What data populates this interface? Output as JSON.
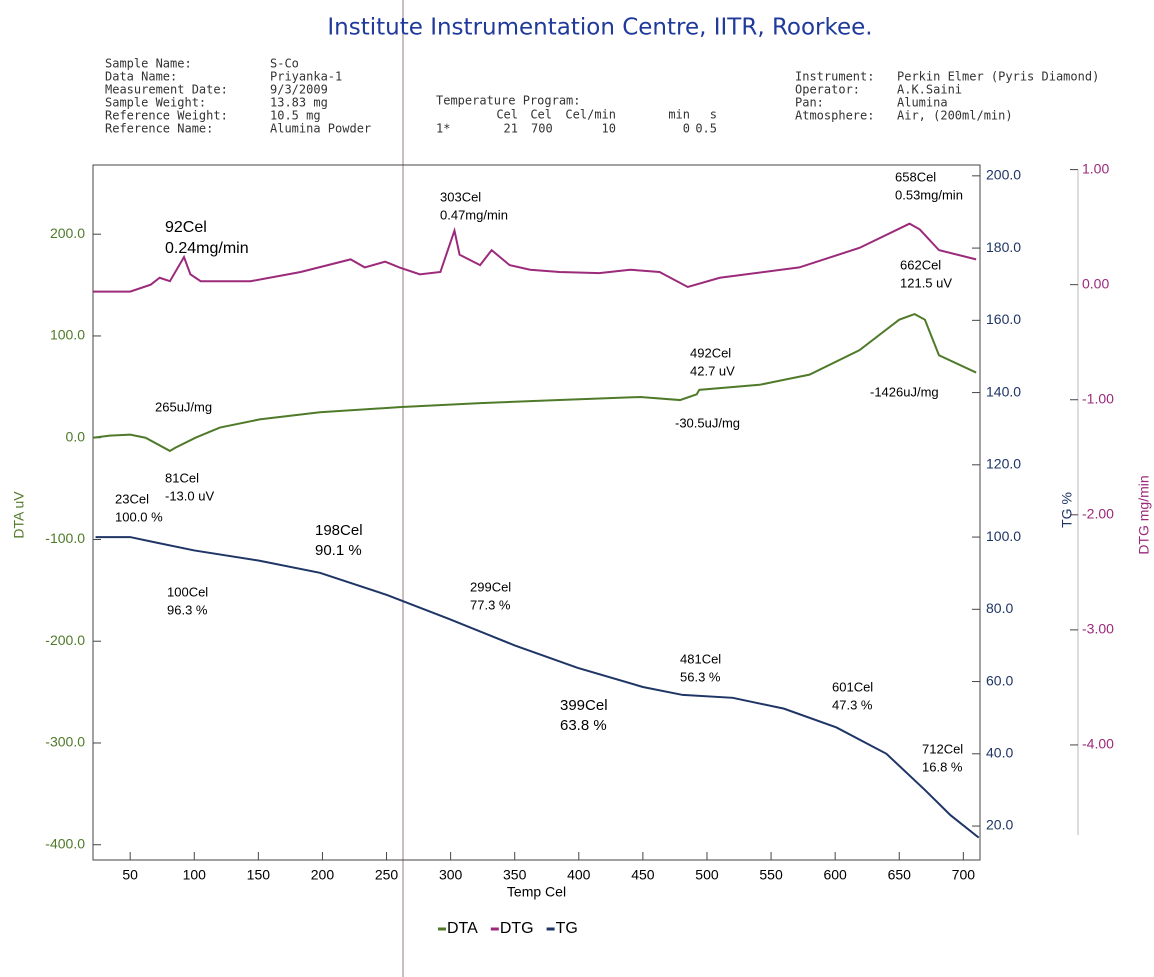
{
  "header": {
    "title": "Institute Instrumentation Centre, IITR, Roorkee.",
    "sample": [
      [
        "Sample Name:",
        "S-Co"
      ],
      [
        "Data Name:",
        "Priyanka-1"
      ],
      [
        "Measurement Date:",
        "9/3/2009"
      ],
      [
        "Sample Weight:",
        "13.83 mg"
      ],
      [
        "Reference Weight:",
        "10.5 mg"
      ],
      [
        "Reference Name:",
        "Alumina Powder"
      ]
    ],
    "program": {
      "title": "Temperature Program:",
      "columns": [
        "Cel",
        "Cel",
        "Cel/min",
        "min",
        "s"
      ],
      "row": [
        "1*",
        "21",
        "700",
        "10",
        "0",
        "0.5"
      ]
    },
    "instrument": [
      [
        "Instrument:",
        "Perkin Elmer (Pyris Diamond)"
      ],
      [
        "Operator:",
        "A.K.Saini"
      ],
      [
        "Pan:",
        "Alumina"
      ],
      [
        "Atmosphere:",
        "Air, (200ml/min)"
      ]
    ]
  },
  "chart_data": {
    "type": "line",
    "xlabel": "Temp Cel",
    "ylabel": "DTA uV",
    "y2label": "TG %",
    "y3label": "DTG mg/min",
    "xlim": [
      21,
      713
    ],
    "xticks": [
      50,
      100,
      150,
      200,
      250,
      300,
      350,
      400,
      450,
      500,
      550,
      600,
      650,
      700
    ],
    "ylim": [
      -415,
      268
    ],
    "yticks": [
      {
        "value": 200,
        "label": "200.0"
      },
      {
        "value": 100,
        "label": "100.0"
      },
      {
        "value": 0,
        "label": "0.0"
      },
      {
        "value": -100,
        "label": "-100.0"
      },
      {
        "value": -200,
        "label": "-200.0"
      },
      {
        "value": -300,
        "label": "-300.0"
      },
      {
        "value": -400,
        "label": "-400.0"
      }
    ],
    "y2lim": [
      10.6,
      203
    ],
    "y2ticks": [
      {
        "value": 200,
        "label": "200.0"
      },
      {
        "value": 180,
        "label": "180.0"
      },
      {
        "value": 160,
        "label": "160.0"
      },
      {
        "value": 140,
        "label": "140.0"
      },
      {
        "value": 120,
        "label": "120.0"
      },
      {
        "value": 100,
        "label": "100.0"
      },
      {
        "value": 80,
        "label": "80.0"
      },
      {
        "value": 60,
        "label": "60.0"
      },
      {
        "value": 40,
        "label": "40.0"
      },
      {
        "value": 20,
        "label": "20.0"
      }
    ],
    "y3lim": [
      -5.0,
      1.04
    ],
    "y3ticks": [
      {
        "value": 1,
        "label": "1.00"
      },
      {
        "value": 0,
        "label": "0.00"
      },
      {
        "value": -1,
        "label": "-1.00"
      },
      {
        "value": -2,
        "label": "-2.00"
      },
      {
        "value": -3,
        "label": "-3.00"
      },
      {
        "value": -4,
        "label": "-4.00"
      }
    ],
    "series": [
      {
        "name": "DTA",
        "color": "#4f7a2a",
        "axis": "y",
        "x": [
          21,
          34,
          50,
          62,
          81,
          85,
          101,
          120,
          151,
          198,
          260,
          323,
          385,
          448,
          479,
          492,
          494,
          541,
          580,
          619,
          650,
          662,
          670,
          681,
          710
        ],
        "values": [
          0,
          2,
          3,
          0,
          -13,
          -10,
          0,
          10,
          18,
          25,
          30,
          34,
          37,
          40,
          37,
          42.7,
          47,
          52,
          62,
          86,
          116,
          121.5,
          116,
          81,
          64
        ]
      },
      {
        "name": "DTG",
        "color": "#9b2a7a",
        "axis": "y3",
        "x": [
          21,
          50,
          66,
          73,
          81,
          92,
          97,
          105,
          144,
          183,
          222,
          233,
          249,
          260,
          276,
          292,
          303,
          307,
          323,
          332,
          346,
          362,
          385,
          416,
          440,
          463,
          485,
          510,
          572,
          619,
          658,
          666,
          681,
          710
        ],
        "values": [
          -0.06,
          -0.06,
          0,
          0.06,
          0.03,
          0.24,
          0.09,
          0.03,
          0.03,
          0.11,
          0.22,
          0.15,
          0.2,
          0.15,
          0.09,
          0.11,
          0.47,
          0.26,
          0.17,
          0.3,
          0.17,
          0.13,
          0.11,
          0.1,
          0.13,
          0.11,
          -0.02,
          0.06,
          0.15,
          0.32,
          0.53,
          0.48,
          0.3,
          0.22
        ]
      },
      {
        "name": "TG",
        "color": "#1f3566",
        "axis": "y2",
        "x": [
          23,
          50,
          70,
          100,
          150,
          198,
          250,
          299,
          350,
          399,
          450,
          481,
          520,
          560,
          601,
          640,
          670,
          690,
          712
        ],
        "values": [
          100,
          100,
          98.5,
          96.3,
          93.5,
          90.1,
          84,
          77.3,
          70,
          63.8,
          58.5,
          56.3,
          55.5,
          52.5,
          47.3,
          40,
          30,
          23,
          16.8
        ]
      }
    ],
    "annotations": [
      {
        "lines": [
          "92Cel",
          "0.24mg/min"
        ]
      },
      {
        "lines": [
          "303Cel",
          "0.47mg/min"
        ]
      },
      {
        "lines": [
          "658Cel",
          "0.53mg/min"
        ]
      },
      {
        "lines": [
          "662Cel",
          "121.5 uV"
        ]
      },
      {
        "lines": [
          "492Cel",
          "42.7 uV"
        ]
      },
      {
        "lines": [
          "265uJ/mg"
        ]
      },
      {
        "lines": [
          "-30.5uJ/mg"
        ]
      },
      {
        "lines": [
          "-1426uJ/mg"
        ]
      },
      {
        "lines": [
          "81Cel",
          "-13.0 uV"
        ]
      },
      {
        "lines": [
          "23Cel",
          "100.0 %"
        ]
      },
      {
        "lines": [
          "198Cel",
          "90.1 %"
        ]
      },
      {
        "lines": [
          "100Cel",
          "96.3 %"
        ]
      },
      {
        "lines": [
          "299Cel",
          "77.3 %"
        ]
      },
      {
        "lines": [
          "399Cel",
          "63.8 %"
        ]
      },
      {
        "lines": [
          "481Cel",
          "56.3 %"
        ]
      },
      {
        "lines": [
          "601Cel",
          "47.3 %"
        ]
      },
      {
        "lines": [
          "712Cel",
          "16.8 %"
        ]
      }
    ]
  }
}
